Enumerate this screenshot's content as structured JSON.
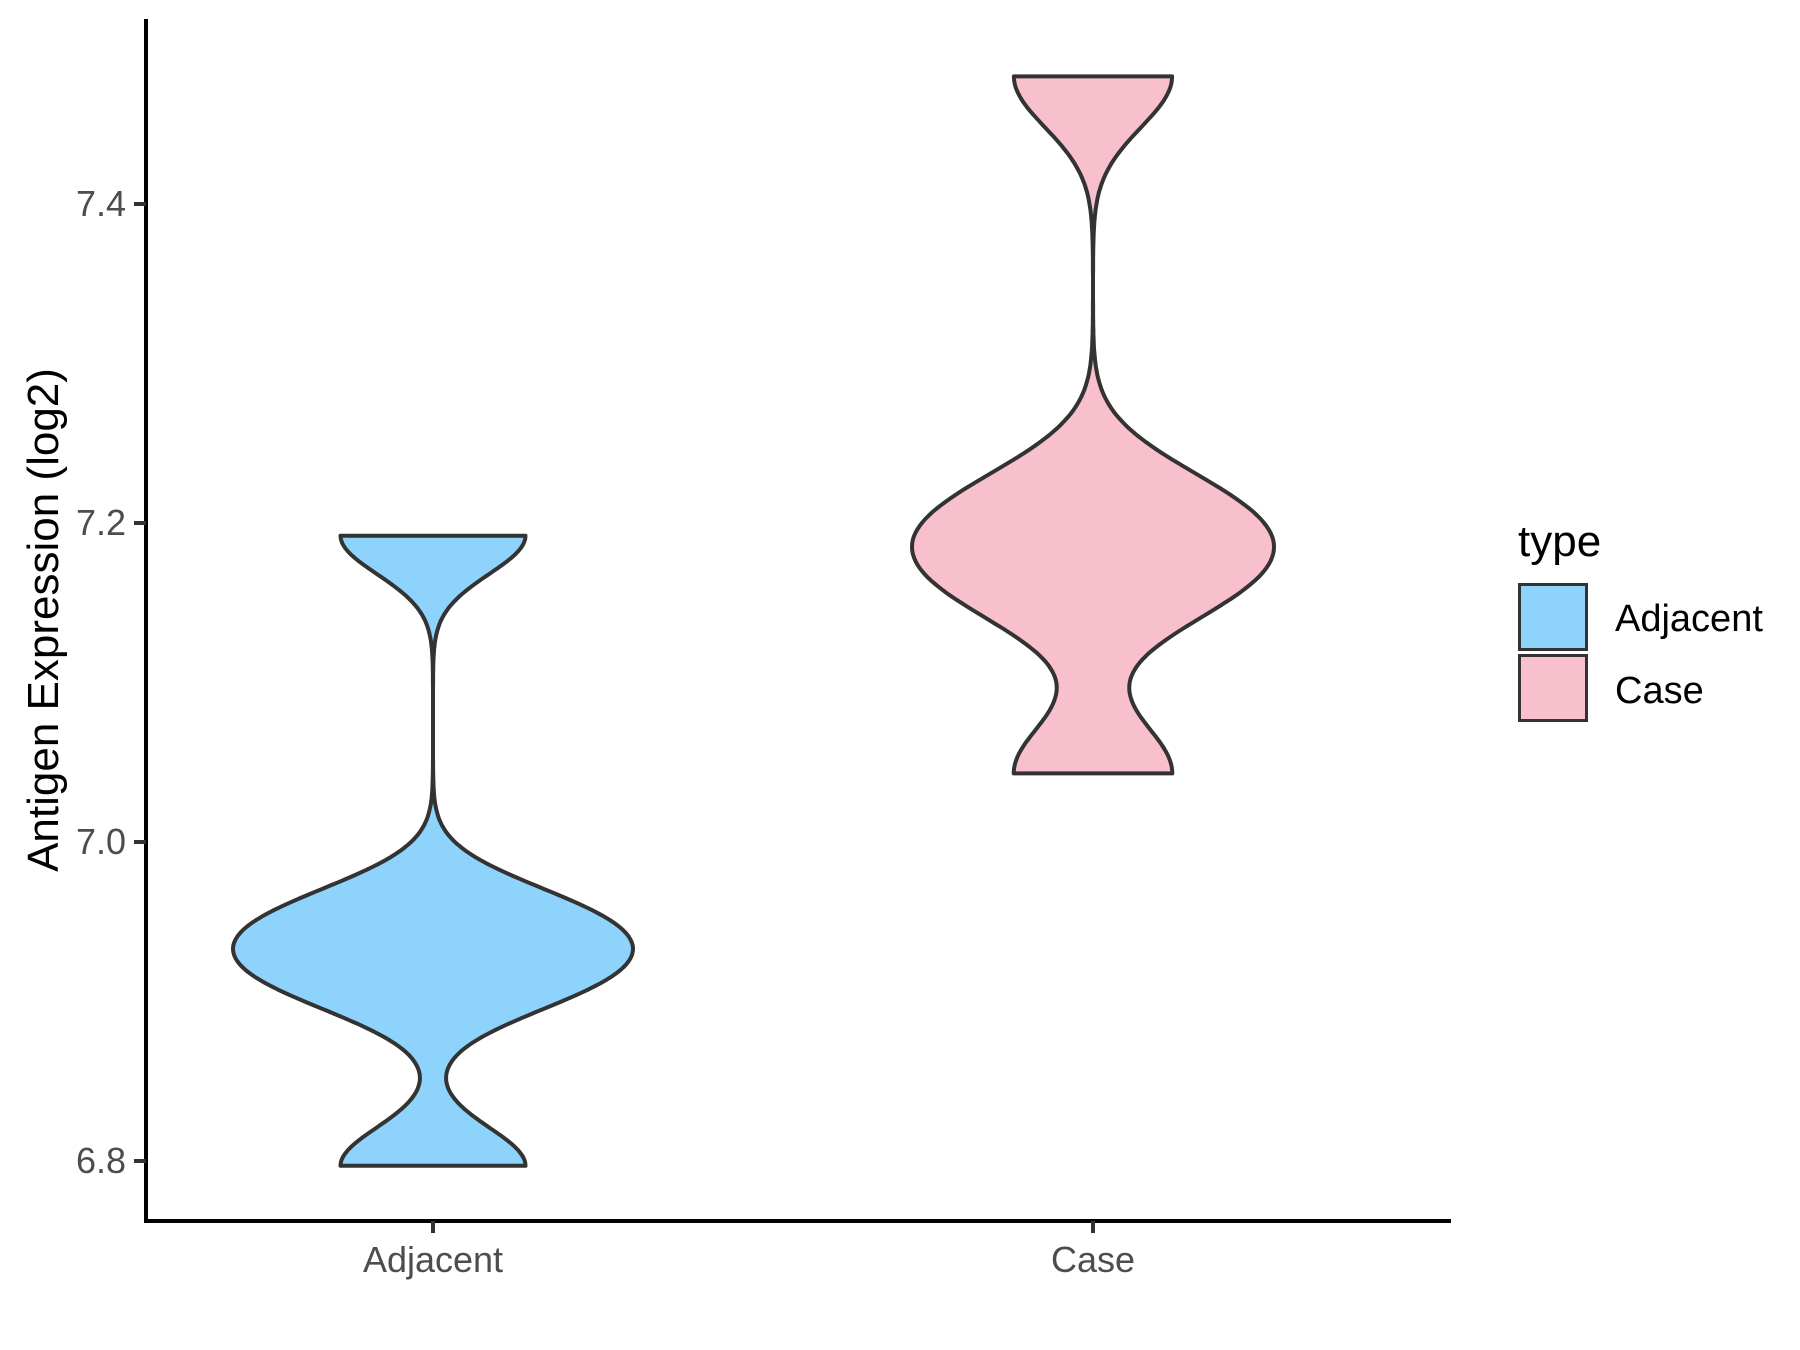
{
  "chart_data": {
    "type": "violin",
    "title": "",
    "xlabel": "",
    "ylabel": "Antigen Expression (log2)",
    "categories": [
      "Adjacent",
      "Case"
    ],
    "yticks": [
      6.8,
      7.0,
      7.2,
      7.4
    ],
    "ytick_labels": [
      "6.8",
      "7.0",
      "7.2",
      "7.4"
    ],
    "ylim": [
      6.76,
      7.51
    ],
    "grid": false,
    "panel_background": "#ffffff",
    "axis_color": "#000000",
    "tick_label_color": "#4d4d4d",
    "legend": {
      "title": "type",
      "position": "right",
      "entries": [
        {
          "label": "Adjacent",
          "color": "#8ED3FB"
        },
        {
          "label": "Case",
          "color": "#F8C0CC"
        }
      ]
    },
    "series": [
      {
        "name": "Adjacent",
        "fill": "#8ED3FB",
        "outline": "#333333",
        "values": [
          6.797,
          6.908,
          6.933,
          6.958,
          7.192
        ],
        "trim_range": [
          6.797,
          7.192
        ],
        "bandwidth": 0.024,
        "max_halfwidth_units": 0.1254,
        "peak_at": 6.93
      },
      {
        "name": "Case",
        "fill": "#F8C0CC",
        "outline": "#333333",
        "values": [
          7.043,
          7.155,
          7.185,
          7.215,
          7.48
        ],
        "trim_range": [
          7.043,
          7.48
        ],
        "bandwidth": 0.032,
        "max_halfwidth_units": 0.1135,
        "peak_at": 7.185
      }
    ]
  }
}
